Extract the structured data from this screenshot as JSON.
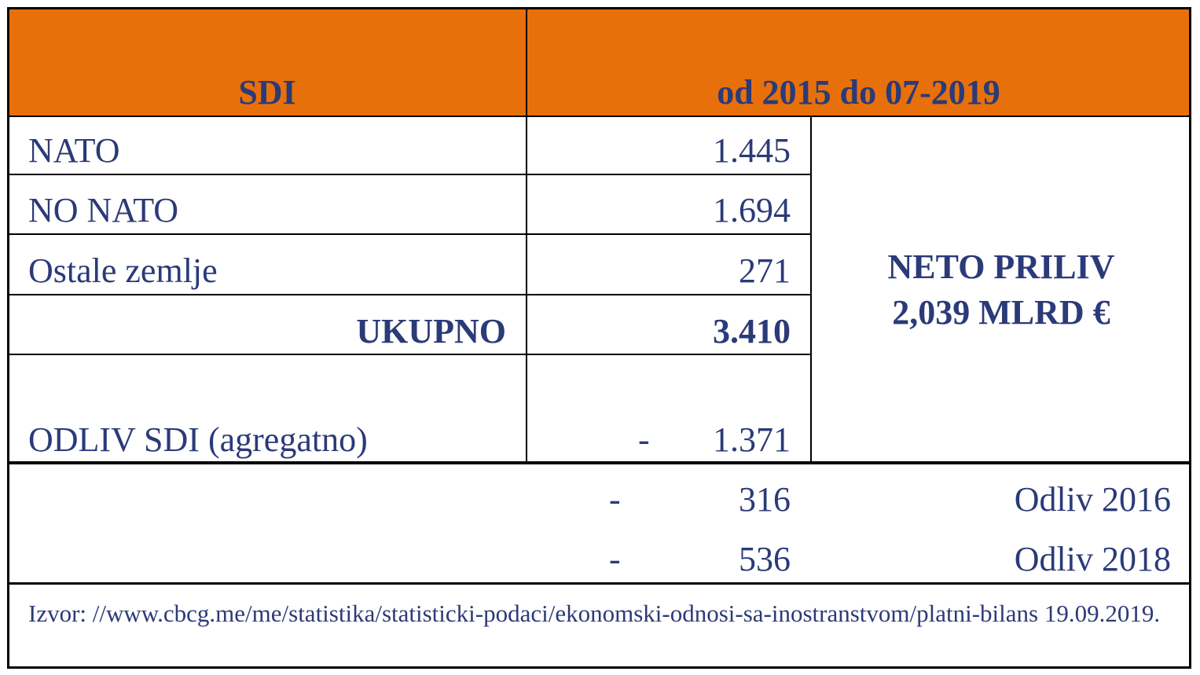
{
  "header": {
    "left": "SDI",
    "right": "od 2015 do 07-2019"
  },
  "rows": [
    {
      "label": "NATO",
      "value": "1.445"
    },
    {
      "label": "NO NATO",
      "value": "1.694"
    },
    {
      "label": "Ostale zemlje",
      "value": "271"
    },
    {
      "label": "UKUPNO",
      "value": "3.410"
    },
    {
      "label": "ODLIV SDI (agregatno)",
      "sign": "-",
      "value": "1.371"
    }
  ],
  "net": {
    "line1": "NETO PRILIV",
    "line2": "2,039 MLRD €"
  },
  "outflows": [
    {
      "sign": "-",
      "value": "316",
      "label": "Odliv 2016"
    },
    {
      "sign": "-",
      "value": "536",
      "label": "Odliv 2018"
    }
  ],
  "source": "Izvor: //www.cbcg.me/me/statistika/statisticki-podaci/ekonomski-odnosi-sa-inostranstvom/platni-bilans 19.09.2019."
}
